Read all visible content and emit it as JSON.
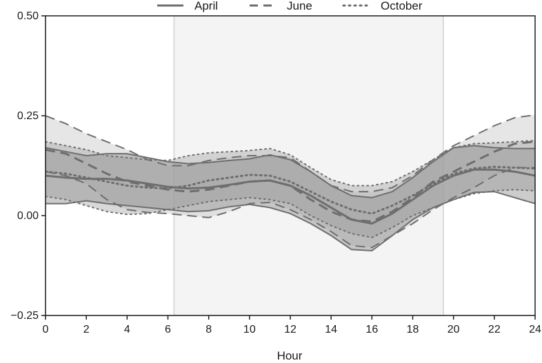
{
  "chart_data": {
    "type": "line",
    "title": "",
    "xlabel": "Hour",
    "ylabel": "",
    "xlim": [
      0,
      24
    ],
    "ylim": [
      -0.25,
      0.5
    ],
    "x_ticks": [
      0,
      2,
      4,
      6,
      8,
      10,
      12,
      14,
      16,
      18,
      20,
      22,
      24
    ],
    "y_ticks": [
      -0.25,
      0,
      0.25,
      0.5
    ],
    "y_tick_labels": [
      "−0.25",
      "0.00",
      "0.25",
      "0.50"
    ],
    "x_tick_labels": [
      "0",
      "2",
      "4",
      "6",
      "8",
      "10",
      "12",
      "14",
      "16",
      "18",
      "20",
      "22",
      "24"
    ],
    "grid": false,
    "legend_position": "top",
    "daylight_band": {
      "start": 6.3,
      "end": 19.5,
      "color": "#f4f4f4",
      "edge_color": "#d9d9d9"
    },
    "x": [
      0,
      1,
      2,
      3,
      4,
      5,
      6,
      7,
      8,
      9,
      10,
      11,
      12,
      13,
      14,
      15,
      16,
      17,
      18,
      19,
      20,
      21,
      22,
      23,
      24
    ],
    "series": [
      {
        "name": "April",
        "style": "solid",
        "color": "#6e6e6e",
        "band_color": "#8f8f8f",
        "mean": [
          0.1,
          0.095,
          0.092,
          0.092,
          0.088,
          0.08,
          0.072,
          0.068,
          0.07,
          0.077,
          0.085,
          0.088,
          0.075,
          0.05,
          0.02,
          -0.01,
          -0.02,
          0.005,
          0.04,
          0.075,
          0.1,
          0.115,
          0.115,
          0.11,
          0.1
        ],
        "upper": [
          0.17,
          0.16,
          0.15,
          0.155,
          0.155,
          0.145,
          0.135,
          0.13,
          0.133,
          0.138,
          0.142,
          0.152,
          0.14,
          0.11,
          0.075,
          0.05,
          0.045,
          0.06,
          0.095,
          0.135,
          0.17,
          0.175,
          0.17,
          0.168,
          0.168
        ],
        "lower": [
          0.03,
          0.03,
          0.037,
          0.03,
          0.025,
          0.02,
          0.015,
          0.01,
          0.012,
          0.022,
          0.028,
          0.02,
          0.005,
          -0.02,
          -0.05,
          -0.085,
          -0.088,
          -0.05,
          -0.01,
          0.02,
          0.04,
          0.058,
          0.06,
          0.045,
          0.03
        ]
      },
      {
        "name": "June",
        "style": "dashed",
        "color": "#6e6e6e",
        "band_color": "#c8c8c8",
        "mean": [
          0.165,
          0.155,
          0.13,
          0.105,
          0.085,
          0.075,
          0.065,
          0.06,
          0.065,
          0.075,
          0.085,
          0.088,
          0.075,
          0.04,
          0.01,
          -0.01,
          -0.015,
          0.01,
          0.045,
          0.085,
          0.11,
          0.135,
          0.16,
          0.18,
          0.185
        ],
        "upper": [
          0.25,
          0.23,
          0.205,
          0.185,
          0.165,
          0.14,
          0.125,
          0.125,
          0.138,
          0.145,
          0.15,
          0.15,
          0.145,
          0.11,
          0.075,
          0.06,
          0.06,
          0.07,
          0.1,
          0.14,
          0.175,
          0.2,
          0.225,
          0.245,
          0.252
        ],
        "lower": [
          0.11,
          0.1,
          0.08,
          0.04,
          0.015,
          0.008,
          0.005,
          0.0,
          -0.005,
          0.01,
          0.03,
          0.033,
          0.015,
          -0.01,
          -0.04,
          -0.075,
          -0.08,
          -0.05,
          -0.02,
          0.015,
          0.045,
          0.07,
          0.1,
          0.12,
          0.12
        ]
      },
      {
        "name": "October",
        "style": "dotted",
        "color": "#6e6e6e",
        "band_color": "#a8a8a8",
        "mean": [
          0.11,
          0.105,
          0.095,
          0.085,
          0.075,
          0.07,
          0.068,
          0.075,
          0.088,
          0.095,
          0.102,
          0.1,
          0.085,
          0.06,
          0.035,
          0.015,
          0.005,
          0.025,
          0.05,
          0.08,
          0.105,
          0.118,
          0.122,
          0.12,
          0.118
        ],
        "upper": [
          0.185,
          0.175,
          0.165,
          0.15,
          0.145,
          0.14,
          0.138,
          0.15,
          0.157,
          0.16,
          0.163,
          0.168,
          0.152,
          0.12,
          0.09,
          0.075,
          0.075,
          0.085,
          0.11,
          0.14,
          0.17,
          0.18,
          0.182,
          0.185,
          0.188
        ],
        "lower": [
          0.048,
          0.04,
          0.025,
          0.01,
          0.003,
          0.005,
          0.015,
          0.025,
          0.035,
          0.04,
          0.045,
          0.04,
          0.03,
          0.0,
          -0.025,
          -0.045,
          -0.055,
          -0.03,
          0.0,
          0.02,
          0.04,
          0.055,
          0.062,
          0.065,
          0.062
        ]
      }
    ]
  }
}
